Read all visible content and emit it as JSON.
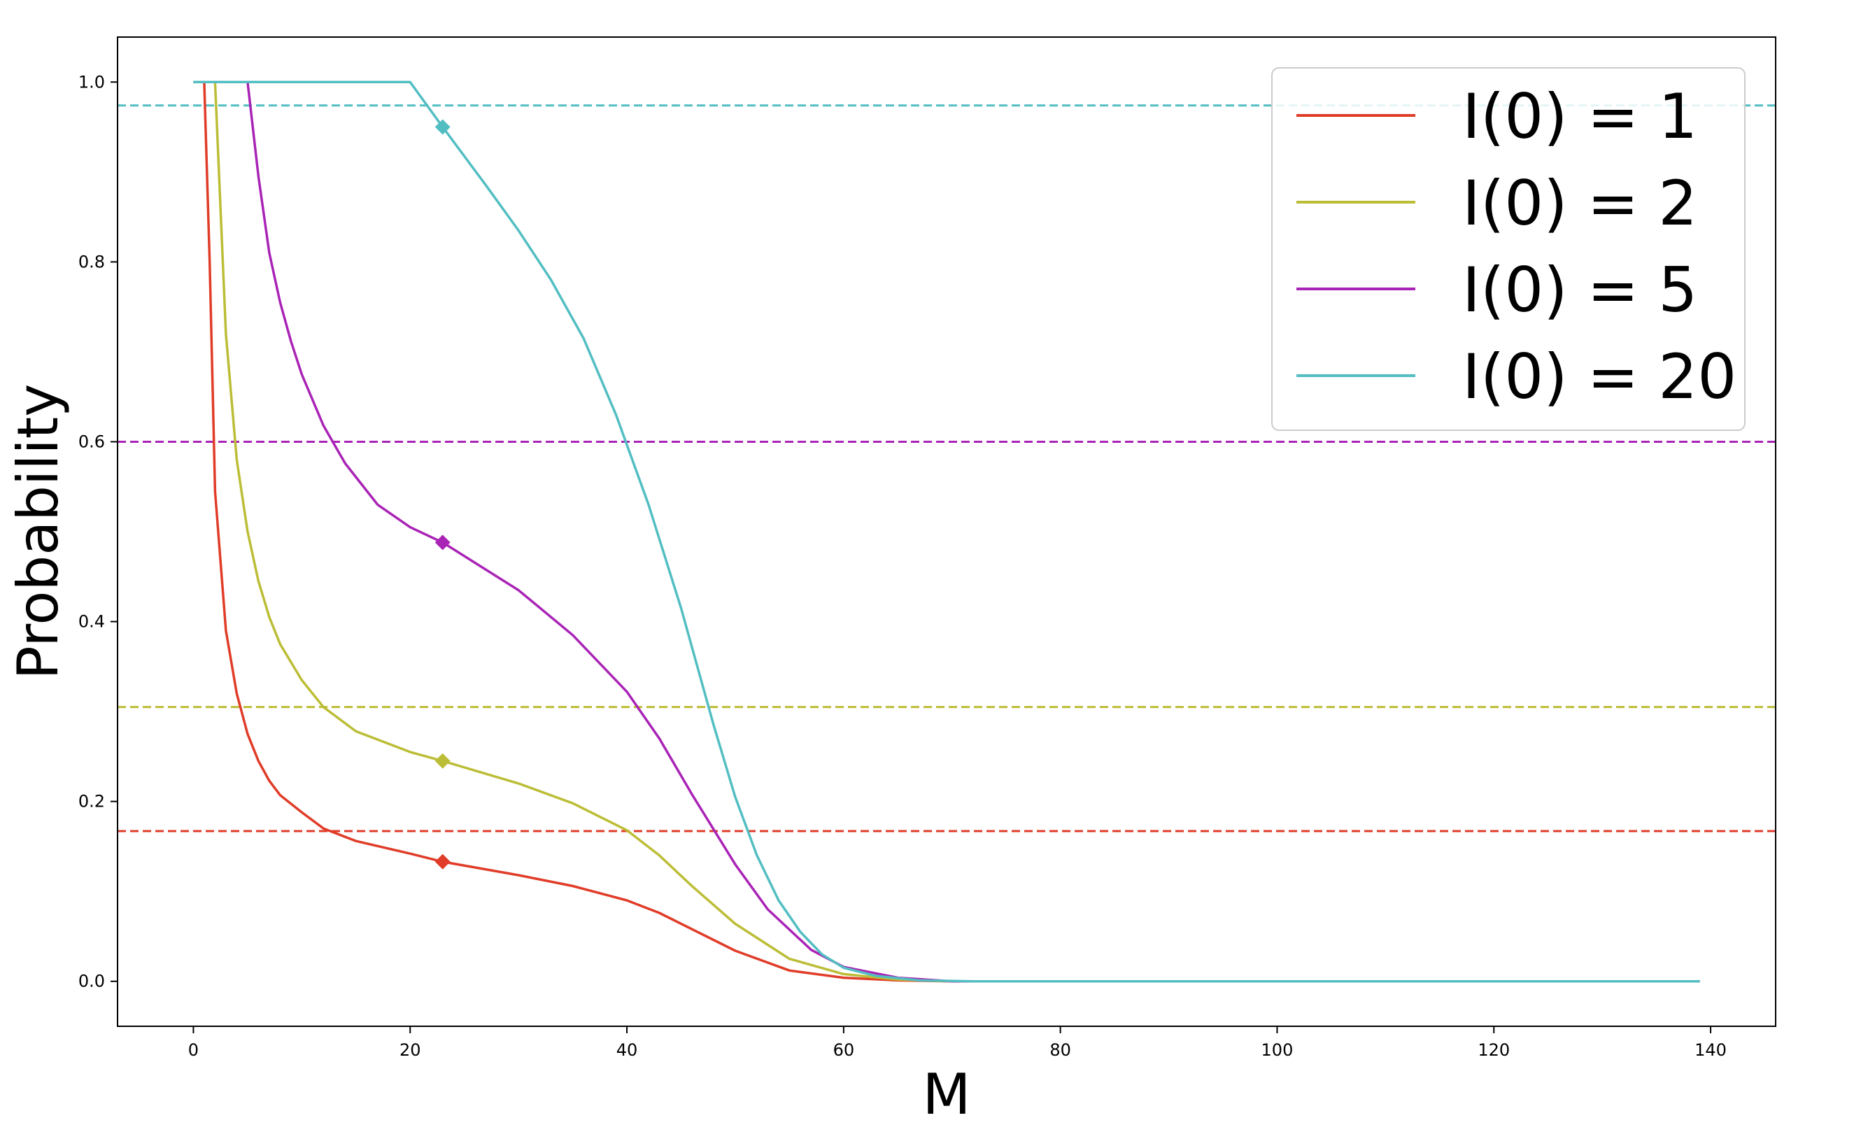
{
  "chart_data": {
    "type": "line",
    "xlabel": "M",
    "ylabel": "Probability",
    "xlim": [
      -7,
      146
    ],
    "ylim": [
      -0.05,
      1.05
    ],
    "xticks": [
      0,
      20,
      40,
      60,
      80,
      100,
      120,
      140
    ],
    "yticks": [
      0.0,
      0.2,
      0.4,
      0.6,
      0.8,
      1.0
    ],
    "xtick_labels": [
      "0",
      "20",
      "40",
      "60",
      "80",
      "100",
      "120",
      "140"
    ],
    "ytick_labels": [
      "0.0",
      "0.2",
      "0.4",
      "0.6",
      "0.8",
      "1.0"
    ],
    "grid": false,
    "legend_position": "top-right",
    "series": [
      {
        "name": "I(0) = 1",
        "color": "#e03c28",
        "hline": 0.167,
        "marker_x": 23,
        "points": [
          [
            1,
            1.0
          ],
          [
            1.5,
            0.8
          ],
          [
            2,
            0.545
          ],
          [
            3,
            0.39
          ],
          [
            4,
            0.32
          ],
          [
            5,
            0.275
          ],
          [
            6,
            0.245
          ],
          [
            7,
            0.223
          ],
          [
            8,
            0.207
          ],
          [
            10,
            0.188
          ],
          [
            12,
            0.17
          ],
          [
            15,
            0.156
          ],
          [
            20,
            0.142
          ],
          [
            23,
            0.133
          ],
          [
            30,
            0.118
          ],
          [
            35,
            0.106
          ],
          [
            40,
            0.09
          ],
          [
            43,
            0.076
          ],
          [
            46,
            0.058
          ],
          [
            50,
            0.034
          ],
          [
            55,
            0.012
          ],
          [
            60,
            0.004
          ],
          [
            65,
            0.001
          ],
          [
            70,
            0.0
          ],
          [
            139,
            0.0
          ]
        ]
      },
      {
        "name": "I(0) = 2",
        "color": "#bcbd36",
        "hline": 0.305,
        "marker_x": 23,
        "points": [
          [
            0,
            1.0
          ],
          [
            2,
            1.0
          ],
          [
            3,
            0.72
          ],
          [
            4,
            0.58
          ],
          [
            5,
            0.5
          ],
          [
            6,
            0.445
          ],
          [
            7,
            0.405
          ],
          [
            8,
            0.375
          ],
          [
            10,
            0.335
          ],
          [
            12,
            0.305
          ],
          [
            15,
            0.278
          ],
          [
            20,
            0.255
          ],
          [
            23,
            0.245
          ],
          [
            30,
            0.22
          ],
          [
            35,
            0.198
          ],
          [
            40,
            0.168
          ],
          [
            43,
            0.14
          ],
          [
            46,
            0.106
          ],
          [
            50,
            0.064
          ],
          [
            55,
            0.025
          ],
          [
            60,
            0.008
          ],
          [
            65,
            0.002
          ],
          [
            70,
            0.0
          ],
          [
            139,
            0.0
          ]
        ]
      },
      {
        "name": "I(0) = 5",
        "color": "#a923b6",
        "hline": 0.6,
        "marker_x": 23,
        "points": [
          [
            0,
            1.0
          ],
          [
            5,
            1.0
          ],
          [
            6,
            0.895
          ],
          [
            7,
            0.81
          ],
          [
            8,
            0.755
          ],
          [
            9,
            0.712
          ],
          [
            10,
            0.675
          ],
          [
            12,
            0.618
          ],
          [
            14,
            0.576
          ],
          [
            17,
            0.53
          ],
          [
            20,
            0.505
          ],
          [
            23,
            0.488
          ],
          [
            30,
            0.435
          ],
          [
            35,
            0.385
          ],
          [
            40,
            0.322
          ],
          [
            43,
            0.27
          ],
          [
            46,
            0.208
          ],
          [
            50,
            0.13
          ],
          [
            53,
            0.08
          ],
          [
            57,
            0.035
          ],
          [
            60,
            0.016
          ],
          [
            65,
            0.004
          ],
          [
            70,
            0.0
          ],
          [
            139,
            0.0
          ]
        ]
      },
      {
        "name": "I(0) = 20",
        "color": "#52bec2",
        "hline": 0.974,
        "marker_x": 23,
        "points": [
          [
            0,
            1.0
          ],
          [
            20,
            1.0
          ],
          [
            23,
            0.95
          ],
          [
            27,
            0.885
          ],
          [
            30,
            0.835
          ],
          [
            33,
            0.78
          ],
          [
            36,
            0.715
          ],
          [
            39,
            0.63
          ],
          [
            42,
            0.53
          ],
          [
            45,
            0.415
          ],
          [
            48,
            0.285
          ],
          [
            50,
            0.205
          ],
          [
            52,
            0.14
          ],
          [
            54,
            0.09
          ],
          [
            56,
            0.055
          ],
          [
            58,
            0.03
          ],
          [
            60,
            0.015
          ],
          [
            63,
            0.006
          ],
          [
            67,
            0.001
          ],
          [
            72,
            0.0
          ],
          [
            139,
            0.0
          ]
        ]
      }
    ]
  }
}
